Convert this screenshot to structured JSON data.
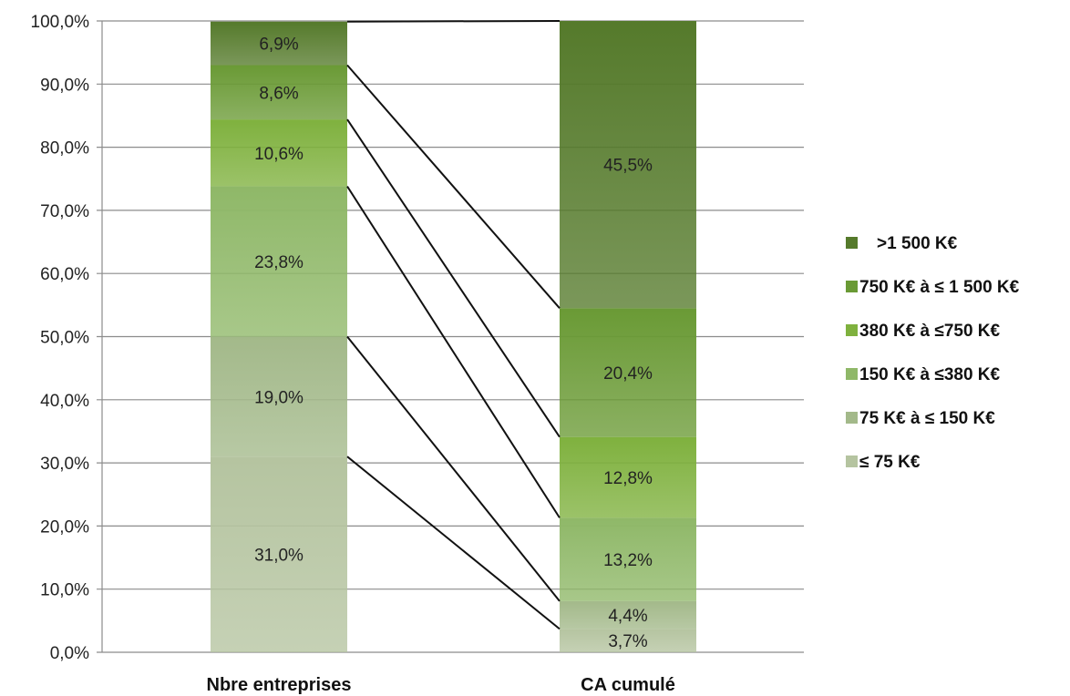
{
  "chart_data": {
    "type": "bar",
    "stacked": true,
    "categories": [
      "Nbre entreprises",
      "CA cumulé"
    ],
    "series": [
      {
        "name": "≤ 75 K€",
        "values": [
          31.0,
          3.7
        ],
        "labels": [
          "31,0%",
          "3,7%"
        ],
        "color": "#b5c4a0"
      },
      {
        "name": "75 K€ à ≤ 150 K€",
        "values": [
          19.0,
          4.4
        ],
        "labels": [
          "19,0%",
          "4,4%"
        ],
        "color": "#a3b98a"
      },
      {
        "name": "150 K€ à ≤380 K€",
        "values": [
          23.8,
          13.2
        ],
        "labels": [
          "23,8%",
          "13,2%"
        ],
        "color": "#8fb868"
      },
      {
        "name": "380 K€ à ≤750 K€",
        "values": [
          10.6,
          12.8
        ],
        "labels": [
          "10,6%",
          "12,8%"
        ],
        "color": "#7fb13e"
      },
      {
        "name": "750 K€ à ≤ 1 500 K€",
        "values": [
          8.6,
          20.4
        ],
        "labels": [
          "8,6%",
          "20,4%"
        ],
        "color": "#6a9a35"
      },
      {
        "name": ">1 500 K€",
        "values": [
          6.9,
          45.5
        ],
        "labels": [
          "6,9%",
          "45,5%"
        ],
        "color": "#557a2b"
      }
    ],
    "ylim": [
      0,
      100
    ],
    "yticks": [
      0,
      10,
      20,
      30,
      40,
      50,
      60,
      70,
      80,
      90,
      100
    ],
    "ytick_labels": [
      "0,0%",
      "10,0%",
      "20,0%",
      "30,0%",
      "40,0%",
      "50,0%",
      "60,0%",
      "70,0%",
      "80,0%",
      "90,0%",
      "100,0%"
    ],
    "grid": true,
    "series_lines": true,
    "legend": {
      "position": "right",
      "order": "reverse"
    }
  }
}
